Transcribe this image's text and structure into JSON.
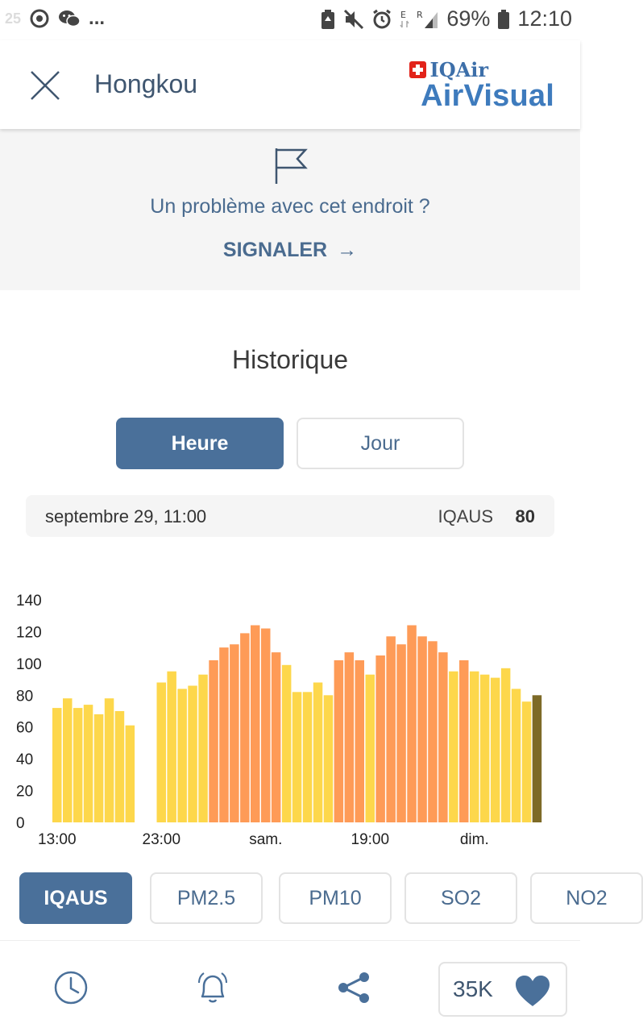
{
  "status_bar": {
    "left_number": "25",
    "left_dots": "...",
    "battery_pct": "69%",
    "time": "12:10"
  },
  "header": {
    "title": "Hongkou",
    "brand_top": "IQAir",
    "brand_main": "AirVisual"
  },
  "report": {
    "question": "Un problème avec cet endroit ?",
    "action": "SIGNALER",
    "arrow": "→"
  },
  "history": {
    "title": "Historique",
    "tabs": [
      {
        "label": "Heure",
        "active": true
      },
      {
        "label": "Jour",
        "active": false
      }
    ],
    "readout": {
      "date": "septembre 29, 11:00",
      "metric": "IQAUS",
      "value": "80"
    }
  },
  "chart_data": {
    "type": "bar",
    "ylim": [
      0,
      140
    ],
    "yticks": [
      "0",
      "20",
      "40",
      "60",
      "80",
      "100",
      "120",
      "140"
    ],
    "x_tick_labels": [
      {
        "label": "13:00",
        "index": 0
      },
      {
        "label": "23:00",
        "index": 10
      },
      {
        "label": "sam.",
        "index": 20
      },
      {
        "label": "19:00",
        "index": 30
      },
      {
        "label": "dim.",
        "index": 40
      }
    ],
    "values": [
      72,
      78,
      72,
      74,
      68,
      78,
      70,
      61,
      null,
      null,
      88,
      95,
      84,
      86,
      93,
      102,
      110,
      112,
      119,
      124,
      122,
      107,
      99,
      82,
      82,
      88,
      80,
      102,
      107,
      102,
      93,
      105,
      117,
      112,
      124,
      117,
      114,
      107,
      95,
      102,
      95,
      93,
      91,
      97,
      84,
      76,
      80
    ],
    "selected_index": 46,
    "colors": {
      "moderate": "#fdd74b",
      "unhealthy_sensitive": "#fe9b57",
      "selected": "#7d6a27"
    }
  },
  "pollutants": {
    "tabs": [
      {
        "label": "IQAUS",
        "active": true
      },
      {
        "label": "PM2.5",
        "active": false
      },
      {
        "label": "PM10",
        "active": false
      },
      {
        "label": "SO2",
        "active": false
      },
      {
        "label": "NO2",
        "active": false
      }
    ]
  },
  "bottom_nav": {
    "likes": "35K"
  },
  "icons": {
    "close": "close-icon",
    "flag": "flag-icon",
    "history": "clock-icon",
    "alert": "bell-icon",
    "share": "share-icon",
    "like": "heart-icon"
  }
}
